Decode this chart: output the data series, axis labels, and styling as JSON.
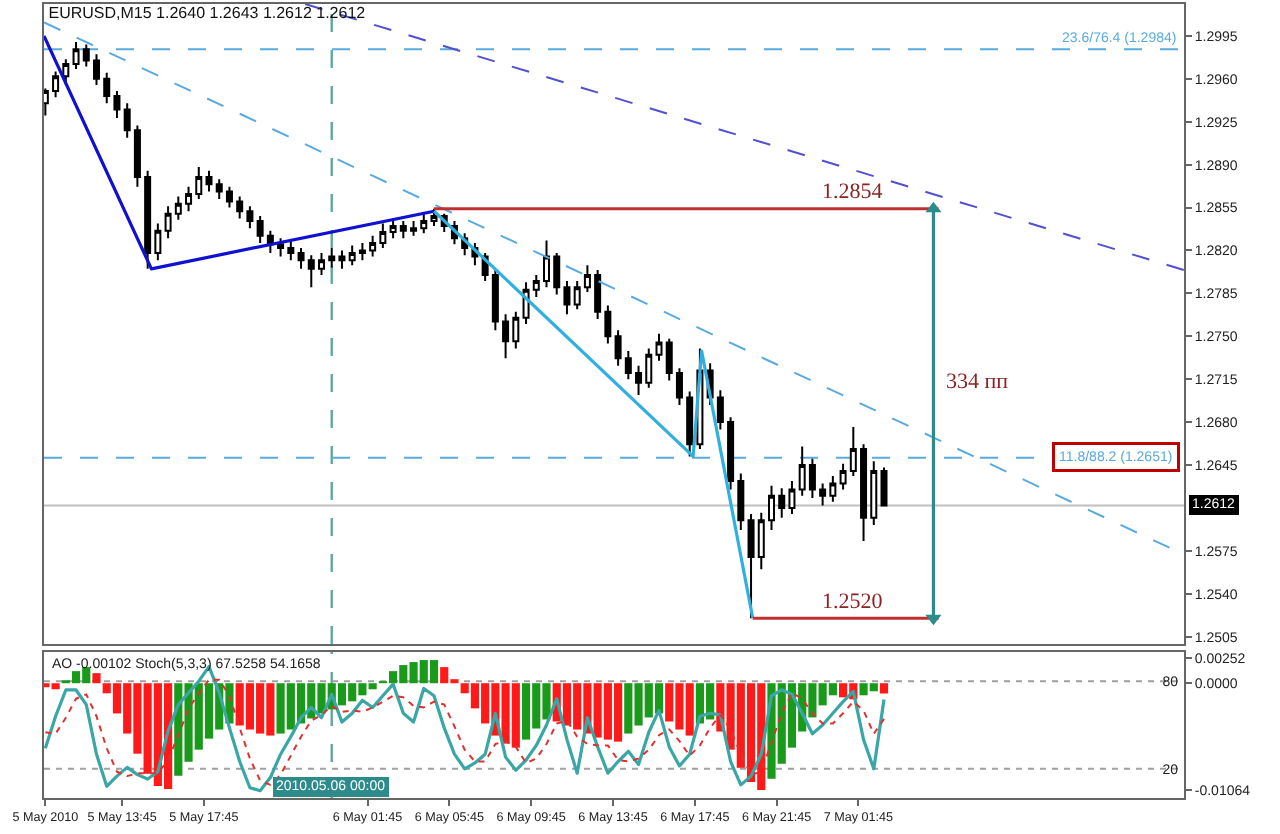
{
  "chart_data": [
    {
      "type": "candlestick",
      "title": "EURUSD,M15 1.2640 1.2643 1.2612 1.2612",
      "tick_labels": "y",
      "xlim": [
        "2010-05-05T09:56",
        "2010-05-07T17:40"
      ],
      "ylim": [
        1.2499,
        1.3021
      ],
      "yticks": [
        1.2995,
        {
          "value": 1.296,
          "label": "1.2960"
        },
        1.2925,
        {
          "value": 1.289,
          "label": "1.2890"
        },
        1.2855,
        {
          "value": 1.282,
          "label": "1.2820"
        },
        1.2785,
        {
          "value": 1.275,
          "label": "1.2750"
        },
        1.2715,
        {
          "value": 1.268,
          "label": "1.2680"
        },
        1.2645,
        1.2575,
        {
          "value": 1.254,
          "label": "1.2540"
        },
        1.2505
      ],
      "x": [
        "2010-05-05T10:00",
        "2010-05-05T10:30",
        "2010-05-05T11:00",
        "2010-05-05T11:30",
        "2010-05-05T12:00",
        "2010-05-05T12:30",
        "2010-05-05T13:00",
        "2010-05-05T13:30",
        "2010-05-05T14:00",
        "2010-05-05T14:30",
        "2010-05-05T15:00",
        "2010-05-05T15:30",
        "2010-05-05T16:00",
        "2010-05-05T16:30",
        "2010-05-05T17:00",
        "2010-05-05T17:30",
        "2010-05-05T18:00",
        "2010-05-05T18:30",
        "2010-05-05T19:00",
        "2010-05-05T19:30",
        "2010-05-05T20:00",
        "2010-05-05T20:30",
        "2010-05-05T21:00",
        "2010-05-05T21:30",
        "2010-05-05T22:00",
        "2010-05-05T22:30",
        "2010-05-05T23:00",
        "2010-05-05T23:30",
        "2010-05-06T00:00",
        "2010-05-06T00:30",
        "2010-05-06T01:00",
        "2010-05-06T01:30",
        "2010-05-06T02:00",
        "2010-05-06T02:30",
        "2010-05-06T03:00",
        "2010-05-06T03:30",
        "2010-05-06T04:00",
        "2010-05-06T04:30",
        "2010-05-06T05:00",
        "2010-05-06T05:30",
        "2010-05-06T06:00",
        "2010-05-06T06:30",
        "2010-05-06T07:00",
        "2010-05-06T07:30",
        "2010-05-06T08:00",
        "2010-05-06T08:30",
        "2010-05-06T09:00",
        "2010-05-06T09:30",
        "2010-05-06T10:00",
        "2010-05-06T10:30",
        "2010-05-06T11:00",
        "2010-05-06T11:30",
        "2010-05-06T12:00",
        "2010-05-06T12:30",
        "2010-05-06T13:00",
        "2010-05-06T13:30",
        "2010-05-06T14:00",
        "2010-05-06T14:30",
        "2010-05-06T15:00",
        "2010-05-06T15:30",
        "2010-05-06T16:00",
        "2010-05-06T16:30",
        "2010-05-06T17:00",
        "2010-05-06T17:30",
        "2010-05-06T18:00",
        "2010-05-06T18:30",
        "2010-05-06T19:00",
        "2010-05-06T19:30",
        "2010-05-06T20:00",
        "2010-05-06T20:30",
        "2010-05-06T21:00",
        "2010-05-06T21:30",
        "2010-05-06T22:00",
        "2010-05-06T22:30",
        "2010-05-06T23:00",
        "2010-05-06T23:30",
        "2010-05-07T00:00",
        "2010-05-07T00:30",
        "2010-05-07T01:00",
        "2010-05-07T01:30",
        "2010-05-07T02:00",
        "2010-05-07T02:30",
        "2010-05-07T03:00"
      ],
      "ohlc": [
        [
          1.294,
          1.2952,
          1.293,
          1.295
        ],
        [
          1.295,
          1.2966,
          1.2945,
          1.2962
        ],
        [
          1.2962,
          1.2976,
          1.2955,
          1.2972
        ],
        [
          1.2972,
          1.299,
          1.2968,
          1.2984
        ],
        [
          1.2984,
          1.2988,
          1.297,
          1.2975
        ],
        [
          1.2975,
          1.298,
          1.2955,
          1.296
        ],
        [
          1.296,
          1.2965,
          1.294,
          1.2946
        ],
        [
          1.2946,
          1.295,
          1.2928,
          1.2935
        ],
        [
          1.2935,
          1.294,
          1.2912,
          1.2918
        ],
        [
          1.2918,
          1.2922,
          1.2872,
          1.288
        ],
        [
          1.288,
          1.2885,
          1.2805,
          1.2818
        ],
        [
          1.2818,
          1.2842,
          1.2812,
          1.2836
        ],
        [
          1.2836,
          1.2856,
          1.283,
          1.285
        ],
        [
          1.285,
          1.2864,
          1.2845,
          1.2858
        ],
        [
          1.2858,
          1.2872,
          1.2852,
          1.2866
        ],
        [
          1.2866,
          1.2888,
          1.2862,
          1.288
        ],
        [
          1.288,
          1.2885,
          1.2868,
          1.2874
        ],
        [
          1.2874,
          1.2878,
          1.2862,
          1.2868
        ],
        [
          1.2868,
          1.2872,
          1.2855,
          1.286
        ],
        [
          1.286,
          1.2864,
          1.2846,
          1.2852
        ],
        [
          1.2852,
          1.2856,
          1.2838,
          1.2844
        ],
        [
          1.2844,
          1.2848,
          1.2826,
          1.2832
        ],
        [
          1.2832,
          1.2836,
          1.2818,
          1.2825
        ],
        [
          1.2825,
          1.283,
          1.2815,
          1.2822
        ],
        [
          1.2822,
          1.2828,
          1.2812,
          1.2818
        ],
        [
          1.2818,
          1.2822,
          1.2805,
          1.2812
        ],
        [
          1.2812,
          1.2816,
          1.279,
          1.2805
        ],
        [
          1.2805,
          1.2818,
          1.28,
          1.2812
        ],
        [
          1.2812,
          1.2822,
          1.2806,
          1.2815
        ],
        [
          1.2815,
          1.282,
          1.2805,
          1.2812
        ],
        [
          1.2812,
          1.2824,
          1.2808,
          1.2818
        ],
        [
          1.2818,
          1.2826,
          1.2812,
          1.282
        ],
        [
          1.282,
          1.2832,
          1.2815,
          1.2826
        ],
        [
          1.2826,
          1.2842,
          1.2822,
          1.2835
        ],
        [
          1.2835,
          1.2846,
          1.283,
          1.284
        ],
        [
          1.284,
          1.2844,
          1.283,
          1.2836
        ],
        [
          1.2836,
          1.2844,
          1.2832,
          1.2838
        ],
        [
          1.2838,
          1.285,
          1.2834,
          1.2844
        ],
        [
          1.2844,
          1.2854,
          1.284,
          1.2848
        ],
        [
          1.2848,
          1.285,
          1.2835,
          1.284
        ],
        [
          1.284,
          1.2844,
          1.2825,
          1.283
        ],
        [
          1.283,
          1.2834,
          1.2816,
          1.2822
        ],
        [
          1.2822,
          1.2826,
          1.2808,
          1.2815
        ],
        [
          1.2815,
          1.2818,
          1.2795,
          1.28
        ],
        [
          1.28,
          1.2804,
          1.2755,
          1.2762
        ],
        [
          1.2762,
          1.2768,
          1.2732,
          1.2746
        ],
        [
          1.2746,
          1.277,
          1.274,
          1.2765
        ],
        [
          1.2765,
          1.2794,
          1.276,
          1.2788
        ],
        [
          1.2788,
          1.28,
          1.2782,
          1.2795
        ],
        [
          1.2795,
          1.2828,
          1.279,
          1.2815
        ],
        [
          1.2815,
          1.2818,
          1.2784,
          1.279
        ],
        [
          1.279,
          1.2795,
          1.2768,
          1.2776
        ],
        [
          1.2776,
          1.2795,
          1.2772,
          1.279
        ],
        [
          1.279,
          1.2808,
          1.2786,
          1.28
        ],
        [
          1.28,
          1.2804,
          1.2764,
          1.277
        ],
        [
          1.277,
          1.2775,
          1.2744,
          1.275
        ],
        [
          1.275,
          1.2755,
          1.2726,
          1.2732
        ],
        [
          1.2732,
          1.2738,
          1.2715,
          1.272
        ],
        [
          1.272,
          1.2726,
          1.2702,
          1.2712
        ],
        [
          1.2712,
          1.274,
          1.2708,
          1.2735
        ],
        [
          1.2735,
          1.2752,
          1.273,
          1.2745
        ],
        [
          1.2745,
          1.2748,
          1.2714,
          1.272
        ],
        [
          1.272,
          1.2724,
          1.2694,
          1.27
        ],
        [
          1.27,
          1.2705,
          1.2652,
          1.2662
        ],
        [
          1.2662,
          1.274,
          1.2658,
          1.2722
        ],
        [
          1.2722,
          1.2728,
          1.2694,
          1.27
        ],
        [
          1.27,
          1.2706,
          1.2674,
          1.268
        ],
        [
          1.268,
          1.2684,
          1.2625,
          1.2632
        ],
        [
          1.2632,
          1.2638,
          1.2592,
          1.26
        ],
        [
          1.26,
          1.2605,
          1.252,
          1.257
        ],
        [
          1.257,
          1.2606,
          1.256,
          1.26
        ],
        [
          1.26,
          1.2628,
          1.2592,
          1.262
        ],
        [
          1.262,
          1.2626,
          1.2602,
          1.261
        ],
        [
          1.261,
          1.2632,
          1.2605,
          1.2625
        ],
        [
          1.2625,
          1.266,
          1.262,
          1.2645
        ],
        [
          1.2645,
          1.265,
          1.2618,
          1.2625
        ],
        [
          1.2625,
          1.263,
          1.2612,
          1.262
        ],
        [
          1.262,
          1.2636,
          1.2615,
          1.263
        ],
        [
          1.263,
          1.2646,
          1.2625,
          1.264
        ],
        [
          1.264,
          1.2676,
          1.2636,
          1.2658
        ],
        [
          1.2658,
          1.2662,
          1.2583,
          1.2602
        ],
        [
          1.2602,
          1.2648,
          1.2596,
          1.264
        ],
        [
          1.264,
          1.2643,
          1.2612,
          1.2612
        ]
      ],
      "series": [
        {
          "type": "line",
          "color": "#1010d0",
          "x": [
            "2010-05-05T09:56",
            "2010-05-05T15:11",
            "2010-05-06T05:00"
          ],
          "values": [
            1.2995,
            1.2805,
            1.2852
          ]
        },
        {
          "type": "line",
          "color": "#30b0e0",
          "x": [
            "2010-05-06T05:00",
            "2010-05-06T17:40",
            "2010-05-06T18:05",
            "2010-05-06T20:35"
          ],
          "values": [
            1.2852,
            1.2652,
            1.2738,
            1.252
          ]
        },
        {
          "type": "line",
          "color": "#5aaae0",
          "line_style": "dashed",
          "x": [
            "2010-05-05T09:56",
            "2010-05-07T17:40"
          ],
          "values": [
            1.3006,
            1.2572
          ]
        },
        {
          "type": "line",
          "color": "#5050d0",
          "line_style": "dashed",
          "x": [
            "2010-05-05T22:42",
            "2010-05-07T17:40"
          ],
          "values": [
            1.3021,
            1.2804
          ]
        },
        {
          "type": "line",
          "color": "#c03030",
          "x": [
            "2010-05-06T05:00",
            "2010-05-07T05:40"
          ],
          "values": [
            1.2854,
            1.2854
          ]
        },
        {
          "type": "line",
          "color": "#c03030",
          "x": [
            "2010-05-06T20:35",
            "2010-05-07T05:40"
          ],
          "values": [
            1.252,
            1.252
          ]
        },
        {
          "type": "line",
          "color": "#2e8b8b",
          "marker": "triangle",
          "x": [
            "2010-05-07T05:25",
            "2010-05-07T05:25"
          ],
          "values": [
            1.252,
            1.2854
          ]
        }
      ],
      "ref_lines": [
        {
          "axis": "x",
          "value": "2010-05-06T00:00",
          "color": "#5fa8a0",
          "line_style": "dashed"
        },
        {
          "axis": "y",
          "value": 1.2984,
          "color": "#5aaae0",
          "line_style": "dashed",
          "label": "23.6/76.4 (1.2984)"
        },
        {
          "axis": "y",
          "value": 1.2651,
          "color": "#5aaae0",
          "line_style": "dashed",
          "label": "11.8/88.2 (1.2651)"
        },
        {
          "axis": "y",
          "value": 1.2612,
          "color": "#c0c0c0",
          "line_style": "solid",
          "label": "1.2612"
        }
      ],
      "annotations": [
        {
          "text": "1.2854",
          "x": "2010-05-06T23:20",
          "y": 1.2854
        },
        {
          "text": "1.2520",
          "x": "2010-05-06T23:20",
          "y": 1.252
        },
        {
          "text": "334 пп",
          "x": "2010-05-07T05:25",
          "y": 1.27
        }
      ]
    },
    {
      "type": "bar",
      "xlim": [
        "2010-05-05T09:56",
        "2010-05-07T17:40"
      ],
      "xticks": [
        {
          "value": "2010-05-05T10:00",
          "label": "5 May 2010"
        },
        {
          "value": "2010-05-05T13:45",
          "label": "5 May 13:45"
        },
        {
          "value": "2010-05-05T17:45",
          "label": "5 May 17:45"
        },
        {
          "value": "2010-05-06T01:45",
          "label": "6 May 01:45"
        },
        {
          "value": "2010-05-06T05:45",
          "label": "6 May 05:45"
        },
        {
          "value": "2010-05-06T09:45",
          "label": "6 May 09:45"
        },
        {
          "value": "2010-05-06T13:45",
          "label": "6 May 13:45"
        },
        {
          "value": "2010-05-06T17:45",
          "label": "6 May 17:45"
        },
        {
          "value": "2010-05-06T21:45",
          "label": "6 May 21:45"
        },
        {
          "value": "2010-05-07T01:45",
          "label": "7 May 01:45"
        }
      ],
      "ylim": [
        -0.0114,
        0.0031
      ],
      "yticks": [
        0.00252,
        {
          "value": 0,
          "label": "0.0000"
        },
        -0.01064
      ],
      "y2lim": [
        0,
        100
      ],
      "y2ticks": [
        20,
        80
      ],
      "x": [
        "2010-05-05T10:00",
        "2010-05-05T10:30",
        "2010-05-05T11:00",
        "2010-05-05T11:30",
        "2010-05-05T12:00",
        "2010-05-05T12:30",
        "2010-05-05T13:00",
        "2010-05-05T13:30",
        "2010-05-05T14:00",
        "2010-05-05T14:30",
        "2010-05-05T15:00",
        "2010-05-05T15:30",
        "2010-05-05T16:00",
        "2010-05-05T16:30",
        "2010-05-05T17:00",
        "2010-05-05T17:30",
        "2010-05-05T18:00",
        "2010-05-05T18:30",
        "2010-05-05T19:00",
        "2010-05-05T19:30",
        "2010-05-05T20:00",
        "2010-05-05T20:30",
        "2010-05-05T21:00",
        "2010-05-05T21:30",
        "2010-05-05T22:00",
        "2010-05-05T22:30",
        "2010-05-05T23:00",
        "2010-05-05T23:30",
        "2010-05-06T00:00",
        "2010-05-06T00:30",
        "2010-05-06T01:00",
        "2010-05-06T01:30",
        "2010-05-06T02:00",
        "2010-05-06T02:30",
        "2010-05-06T03:00",
        "2010-05-06T03:30",
        "2010-05-06T04:00",
        "2010-05-06T04:30",
        "2010-05-06T05:00",
        "2010-05-06T05:30",
        "2010-05-06T06:00",
        "2010-05-06T06:30",
        "2010-05-06T07:00",
        "2010-05-06T07:30",
        "2010-05-06T08:00",
        "2010-05-06T08:30",
        "2010-05-06T09:00",
        "2010-05-06T09:30",
        "2010-05-06T10:00",
        "2010-05-06T10:30",
        "2010-05-06T11:00",
        "2010-05-06T11:30",
        "2010-05-06T12:00",
        "2010-05-06T12:30",
        "2010-05-06T13:00",
        "2010-05-06T13:30",
        "2010-05-06T14:00",
        "2010-05-06T14:30",
        "2010-05-06T15:00",
        "2010-05-06T15:30",
        "2010-05-06T16:00",
        "2010-05-06T16:30",
        "2010-05-06T17:00",
        "2010-05-06T17:30",
        "2010-05-06T18:00",
        "2010-05-06T18:30",
        "2010-05-06T19:00",
        "2010-05-06T19:30",
        "2010-05-06T20:00",
        "2010-05-06T20:30",
        "2010-05-06T21:00",
        "2010-05-06T21:30",
        "2010-05-06T22:00",
        "2010-05-06T22:30",
        "2010-05-06T23:00",
        "2010-05-06T23:30",
        "2010-05-07T00:00",
        "2010-05-07T00:30",
        "2010-05-07T01:00",
        "2010-05-07T01:30",
        "2010-05-07T02:00",
        "2010-05-07T02:30",
        "2010-05-07T03:00"
      ],
      "series": [
        {
          "values": [
            -0.0004,
            -0.0006,
            0.0003,
            0.0012,
            0.0016,
            0.001,
            -0.001,
            -0.003,
            -0.005,
            -0.007,
            -0.009,
            -0.0102,
            -0.0105,
            -0.0092,
            -0.0078,
            -0.0066,
            -0.0055,
            -0.0046,
            -0.004,
            -0.0042,
            -0.0046,
            -0.005,
            -0.0052,
            -0.005,
            -0.0046,
            -0.004,
            -0.0035,
            -0.003,
            -0.0026,
            -0.0022,
            -0.0018,
            -0.0012,
            -0.0006,
            0.0002,
            0.0012,
            0.0018,
            0.0021,
            0.0023,
            0.0023,
            0.0016,
            0.0004,
            -0.001,
            -0.0025,
            -0.004,
            -0.0052,
            -0.006,
            -0.0064,
            -0.0056,
            -0.0045,
            -0.0036,
            -0.0038,
            -0.0042,
            -0.0046,
            -0.005,
            -0.0054,
            -0.0056,
            -0.0058,
            -0.005,
            -0.0042,
            -0.0034,
            -0.003,
            -0.0038,
            -0.0046,
            -0.0052,
            -0.004,
            -0.0036,
            -0.0048,
            -0.0066,
            -0.0084,
            -0.0098,
            -0.0106,
            -0.0095,
            -0.008,
            -0.0064,
            -0.0048,
            -0.0034,
            -0.0022,
            -0.0012,
            -0.0014,
            -0.0016,
            -0.0012,
            -0.0008,
            -0.00102
          ],
          "colors": [
            "#ff1a1a",
            "#ff1a1a",
            "#1a9a1a",
            "#1a9a1a",
            "#1a9a1a",
            "#ff1a1a",
            "#ff1a1a",
            "#ff1a1a",
            "#ff1a1a",
            "#ff1a1a",
            "#ff1a1a",
            "#ff1a1a",
            "#ff1a1a",
            "#1a9a1a",
            "#1a9a1a",
            "#1a9a1a",
            "#1a9a1a",
            "#1a9a1a",
            "#1a9a1a",
            "#ff1a1a",
            "#ff1a1a",
            "#ff1a1a",
            "#ff1a1a",
            "#1a9a1a",
            "#1a9a1a",
            "#1a9a1a",
            "#1a9a1a",
            "#1a9a1a",
            "#1a9a1a",
            "#1a9a1a",
            "#1a9a1a",
            "#1a9a1a",
            "#1a9a1a",
            "#1a9a1a",
            "#1a9a1a",
            "#1a9a1a",
            "#1a9a1a",
            "#1a9a1a",
            "#1a9a1a",
            "#ff1a1a",
            "#ff1a1a",
            "#ff1a1a",
            "#ff1a1a",
            "#ff1a1a",
            "#ff1a1a",
            "#ff1a1a",
            "#ff1a1a",
            "#1a9a1a",
            "#1a9a1a",
            "#1a9a1a",
            "#ff1a1a",
            "#ff1a1a",
            "#ff1a1a",
            "#ff1a1a",
            "#ff1a1a",
            "#ff1a1a",
            "#ff1a1a",
            "#1a9a1a",
            "#1a9a1a",
            "#1a9a1a",
            "#1a9a1a",
            "#ff1a1a",
            "#ff1a1a",
            "#ff1a1a",
            "#1a9a1a",
            "#1a9a1a",
            "#ff1a1a",
            "#ff1a1a",
            "#ff1a1a",
            "#ff1a1a",
            "#ff1a1a",
            "#1a9a1a",
            "#1a9a1a",
            "#1a9a1a",
            "#1a9a1a",
            "#1a9a1a",
            "#1a9a1a",
            "#1a9a1a",
            "#ff1a1a",
            "#ff1a1a",
            "#1a9a1a",
            "#1a9a1a",
            "#ff1a1a"
          ]
        },
        {
          "type": "line",
          "axis": "y2",
          "color": "#3aa6a6",
          "values": [
            34,
            56,
            74,
            74,
            64,
            30,
            8,
            15,
            21,
            16,
            13,
            18,
            46,
            64,
            72,
            80,
            90,
            72,
            48,
            25,
            7,
            5,
            14,
            30,
            42,
            55,
            62,
            55,
            71,
            52,
            58,
            67,
            62,
            70,
            78,
            58,
            52,
            75,
            70,
            48,
            30,
            20,
            24,
            30,
            58,
            28,
            19,
            26,
            36,
            50,
            68,
            40,
            17,
            55,
            35,
            17,
            25,
            32,
            23,
            45,
            60,
            35,
            22,
            30,
            56,
            58,
            57,
            25,
            9,
            15,
            30,
            70,
            74,
            71,
            58,
            44,
            50,
            58,
            66,
            73,
            40,
            20,
            67.5258
          ]
        },
        {
          "type": "line",
          "axis": "y2",
          "color": "#e03030",
          "line_style": "dotted",
          "values": [
            45,
            44,
            55,
            68,
            71,
            56,
            34,
            18,
            15,
            17,
            17,
            17,
            26,
            43,
            61,
            72,
            81,
            81,
            70,
            48,
            27,
            12,
            9,
            16,
            29,
            42,
            53,
            57,
            63,
            59,
            60,
            59,
            62,
            66,
            70,
            69,
            63,
            62,
            66,
            64,
            49,
            33,
            25,
            25,
            37,
            39,
            35,
            24,
            27,
            37,
            51,
            53,
            42,
            37,
            36,
            36,
            26,
            25,
            27,
            33,
            43,
            47,
            39,
            29,
            36,
            48,
            57,
            47,
            30,
            16,
            18,
            38,
            58,
            72,
            68,
            58,
            51,
            51,
            58,
            66,
            60,
            44,
            54.1658
          ]
        }
      ],
      "ref_lines": [
        {
          "axis": "x",
          "value": "2010-05-06T00:00",
          "color": "#5fa8a0",
          "line_style": "dashed",
          "label": "2010.05.06 00:00"
        },
        {
          "axis": "y2",
          "value": 80,
          "color": "#a0a0a0",
          "line_style": "dotted"
        },
        {
          "axis": "y2",
          "value": 20,
          "color": "#a0a0a0",
          "line_style": "dotted"
        }
      ],
      "annotations": [
        "AO -0.00102 Stoch(5,3,3) 67.5258 54.1658"
      ]
    }
  ]
}
